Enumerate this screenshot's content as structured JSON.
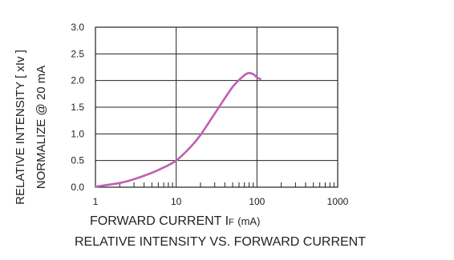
{
  "chart_data": {
    "type": "line",
    "title": "RELATIVE INTENSITY VS. FORWARD CURRENT",
    "xlabel": {
      "main": "FORWARD CURRENT I",
      "sub": "F",
      "unit": "(mA)"
    },
    "ylabel": {
      "line1": "RELATIVE INTENSITY [ xIv ]",
      "line2": "NORMALIZE @ 20 mA"
    },
    "x_scale": "log",
    "xlim": [
      1,
      1000
    ],
    "ylim": [
      0,
      3.0
    ],
    "x_ticks": [
      "1",
      "10",
      "100",
      "1000"
    ],
    "y_ticks": [
      "0.0",
      "0.5",
      "1.0",
      "1.5",
      "2.0",
      "2.5",
      "3.0"
    ],
    "grid": true,
    "series": [
      {
        "color": "#c060b0",
        "x": [
          1,
          2,
          3,
          5,
          7,
          10,
          15,
          20,
          30,
          50,
          70,
          80,
          90,
          100,
          110
        ],
        "y": [
          0.01,
          0.08,
          0.15,
          0.27,
          0.37,
          0.5,
          0.75,
          0.98,
          1.38,
          1.88,
          2.1,
          2.14,
          2.12,
          2.06,
          2.03
        ]
      }
    ]
  }
}
